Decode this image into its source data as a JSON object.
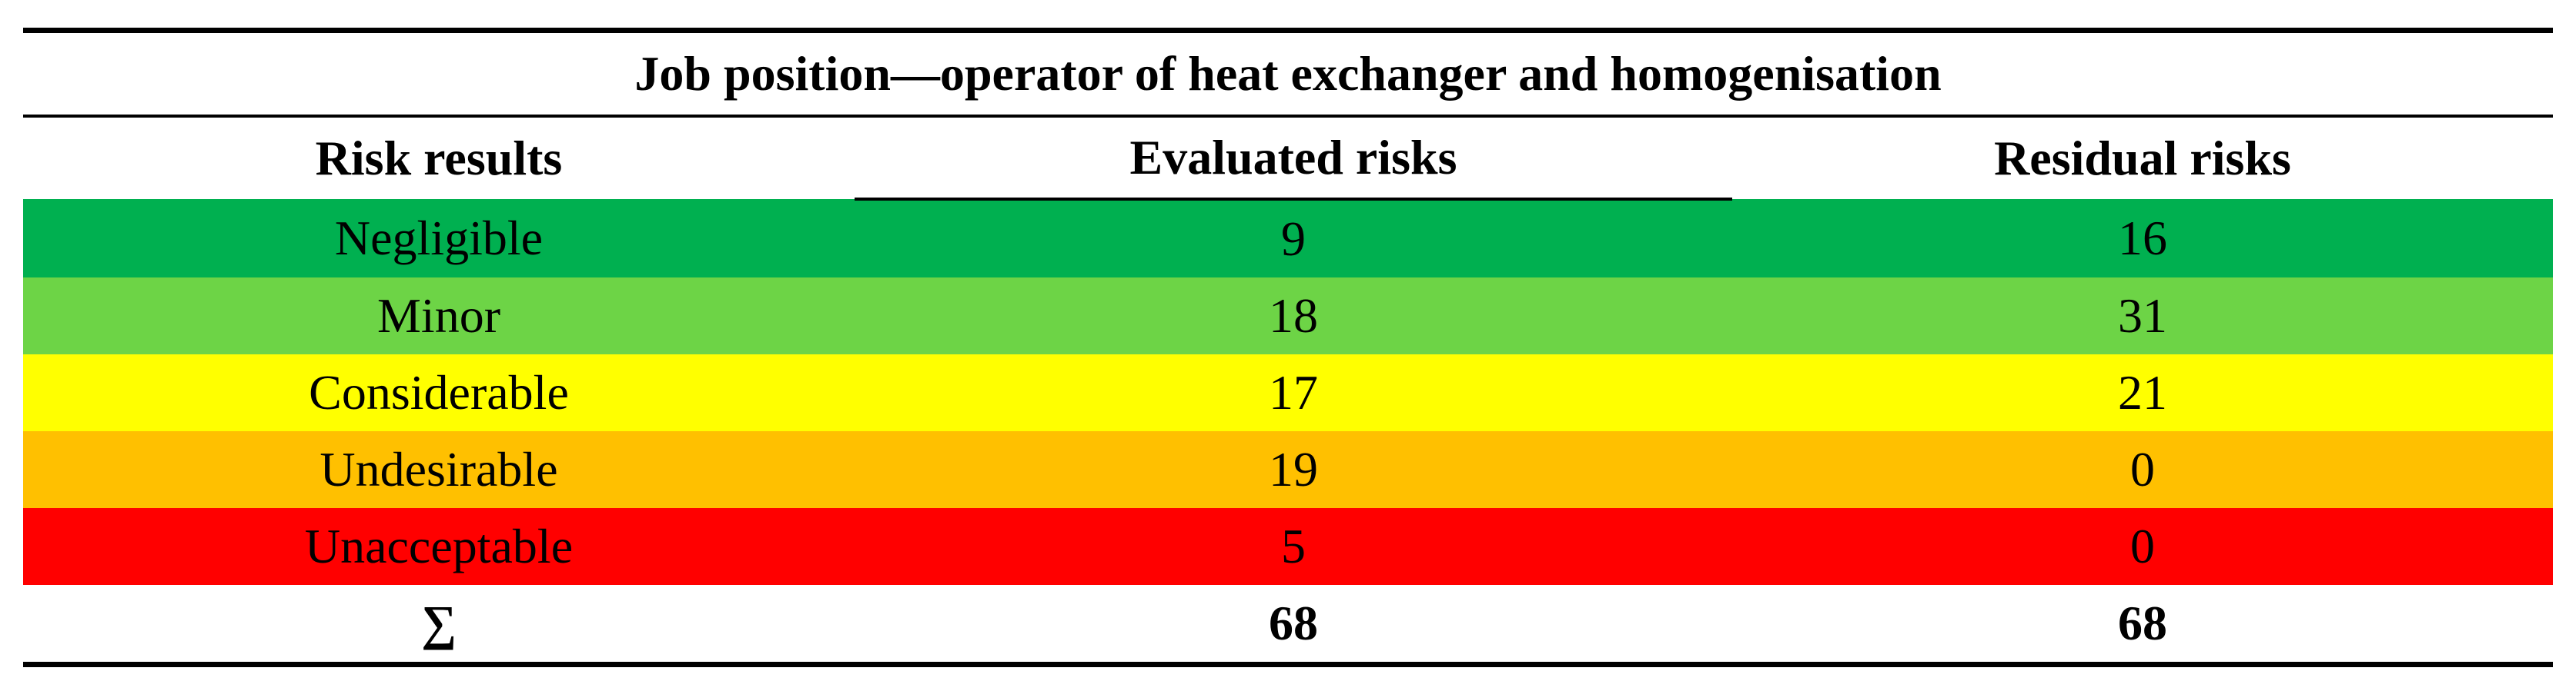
{
  "table": {
    "caption": "Job position—operator of heat exchanger and homogenisation",
    "headers": [
      "Risk results",
      "Evaluated risks",
      "Residual risks"
    ],
    "rows": [
      {
        "label": "Negligible",
        "evaluated": "9",
        "residual": "16",
        "color": "#00b050"
      },
      {
        "label": "Minor",
        "evaluated": "18",
        "residual": "31",
        "color": "#6dd446"
      },
      {
        "label": "Considerable",
        "evaluated": "17",
        "residual": "21",
        "color": "#ffff00"
      },
      {
        "label": "Undesirable",
        "evaluated": "19",
        "residual": "0",
        "color": "#ffc000"
      },
      {
        "label": "Unacceptable",
        "evaluated": "5",
        "residual": "0",
        "color": "#ff0000"
      }
    ],
    "total": {
      "label": "∑",
      "evaluated": "68",
      "residual": "68"
    }
  }
}
